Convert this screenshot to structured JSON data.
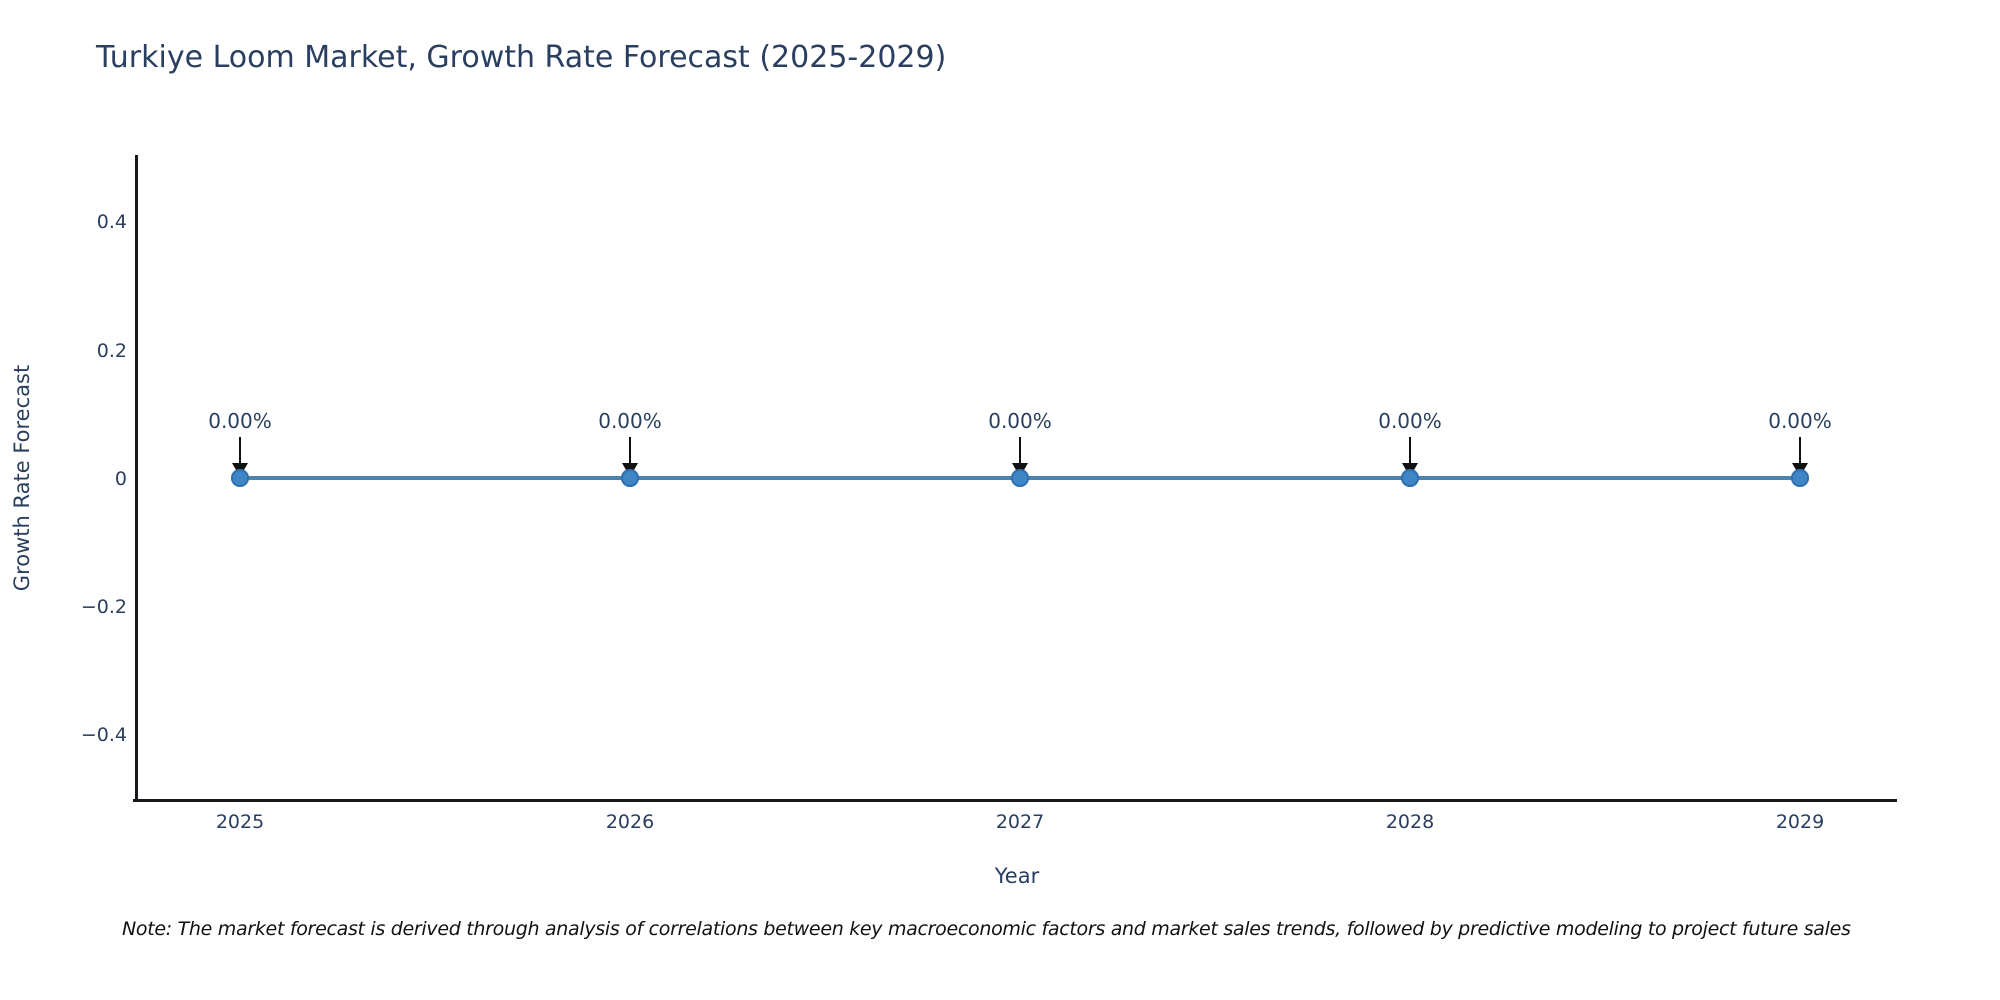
{
  "chart_data": {
    "type": "line",
    "title": "Turkiye Loom Market, Growth Rate Forecast (2025-2029)",
    "xlabel": "Year",
    "ylabel": "Growth Rate Forecast",
    "categories": [
      "2025",
      "2026",
      "2027",
      "2028",
      "2029"
    ],
    "series": [
      {
        "name": "Growth Rate Forecast",
        "values": [
          0.0,
          0.0,
          0.0,
          0.0,
          0.0
        ],
        "point_labels": [
          "0.00%",
          "0.00%",
          "0.00%",
          "0.00%",
          "0.00%"
        ]
      }
    ],
    "y_ticks": [
      "0.4",
      "0.2",
      "0",
      "−0.2",
      "−0.4"
    ],
    "ylim": [
      -0.5,
      0.5
    ],
    "grid": false,
    "legend": "none",
    "annotation_style": "value label with black arrow pointing down to each marker",
    "colors": {
      "line": "#4d82aa",
      "marker": "#3f86c6",
      "arrow": "#111111",
      "text": "#2a3f5f",
      "axis": "#15181d",
      "background": "#ffffff"
    },
    "note": "Note: The market forecast is derived through analysis of correlations between key macroeconomic factors and market sales trends, followed by predictive modeling to project future sales"
  }
}
